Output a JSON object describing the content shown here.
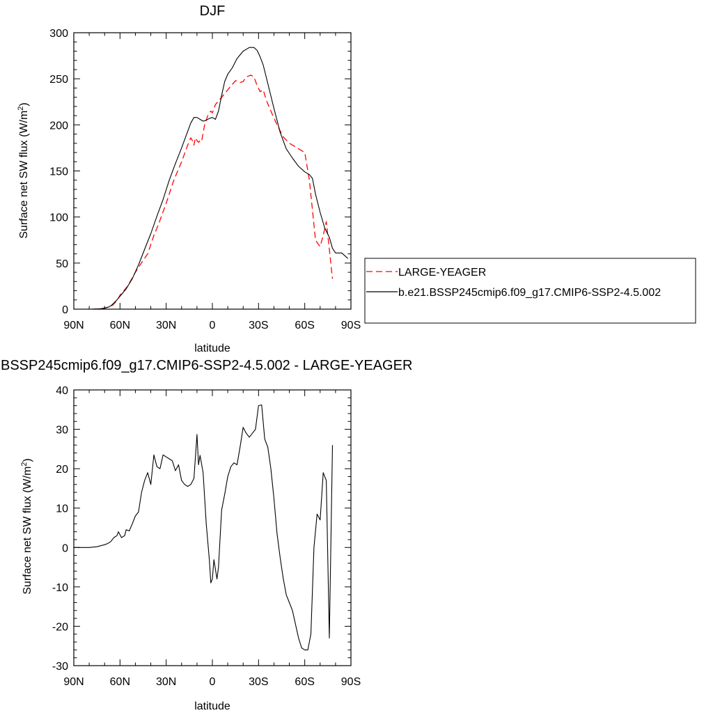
{
  "chart_data": [
    {
      "type": "line",
      "title": "DJF",
      "xlabel": "latitude",
      "ylabel": "Surface net SW flux (W/m",
      "ylabel_sup": "2",
      "ylabel_close": ")",
      "xlim": [
        90,
        -90
      ],
      "ylim": [
        0,
        300
      ],
      "xticks": [
        90,
        60,
        30,
        0,
        -30,
        -60,
        -90
      ],
      "xtick_labels": [
        "90N",
        "60N",
        "30N",
        "0",
        "30S",
        "60S",
        "90S"
      ],
      "yticks": [
        0,
        50,
        100,
        150,
        200,
        250,
        300
      ],
      "ytick_labels": [
        "0",
        "50",
        "100",
        "150",
        "200",
        "250",
        "300"
      ],
      "grid": false,
      "legend_position": "right",
      "series": [
        {
          "name": "LARGE-YEAGER",
          "color": "#ff0000",
          "dash": "dashed",
          "x": [
            78,
            72,
            68,
            65,
            62,
            60,
            55,
            50,
            45,
            42,
            38,
            35,
            30,
            25,
            20,
            16,
            14,
            13,
            12,
            11,
            10,
            9,
            8,
            7,
            5,
            3,
            1,
            0,
            -2,
            -5,
            -10,
            -15,
            -18,
            -20,
            -22,
            -25,
            -27,
            -29,
            -31,
            -33,
            -35,
            -38,
            -42,
            -46,
            -50,
            -55,
            -60,
            -63,
            -65,
            -67,
            -69,
            -70,
            -72,
            -74,
            -76,
            -78
          ],
          "y": [
            0,
            0.5,
            2,
            4,
            9,
            15,
            25,
            40,
            53,
            60,
            80,
            92,
            115,
            140,
            160,
            178,
            186,
            183,
            178,
            186,
            183,
            181,
            183,
            182,
            200,
            210,
            215,
            213,
            222,
            228,
            238,
            248,
            246,
            247,
            252,
            254,
            252,
            243,
            236,
            238,
            227,
            215,
            200,
            187,
            180,
            175,
            170,
            140,
            108,
            75,
            70,
            68,
            80,
            95,
            65,
            33
          ]
        },
        {
          "name": "b.e21.BSSP245cmip6.f09_g17.CMIP6-SSP2-4.5.002",
          "color": "#000000",
          "dash": "solid",
          "x": [
            78,
            74,
            70,
            67,
            65,
            62,
            60,
            56,
            52,
            48,
            44,
            40,
            36,
            32,
            28,
            24,
            20,
            16,
            14,
            12,
            10,
            8,
            6,
            4,
            2,
            0,
            -2,
            -4,
            -6,
            -8,
            -10,
            -13,
            -16,
            -20,
            -24,
            -27,
            -29,
            -31,
            -33,
            -36,
            -40,
            -44,
            -48,
            -52,
            -56,
            -60,
            -63,
            -65,
            -67,
            -70,
            -73,
            -76,
            -78,
            -80,
            -82,
            -84,
            -86,
            -88
          ],
          "y": [
            0,
            0.2,
            1,
            2.5,
            5,
            10,
            14,
            22,
            33,
            48,
            65,
            82,
            101,
            119,
            140,
            158,
            175,
            193,
            202,
            208,
            208,
            206,
            204,
            205,
            207,
            208,
            206,
            215,
            232,
            247,
            255,
            262,
            272,
            280,
            284,
            284,
            281,
            274,
            265,
            245,
            218,
            192,
            174,
            164,
            155,
            149,
            146,
            142,
            125,
            105,
            88,
            78,
            66,
            61,
            61,
            61,
            58,
            55
          ]
        }
      ]
    },
    {
      "type": "line",
      "title": "BSSP245cmip6.f09_g17.CMIP6-SSP2-4.5.002 - LARGE-YEAGER",
      "xlabel": "latitude",
      "ylabel": "Surface net SW flux (W/m",
      "ylabel_sup": "2",
      "ylabel_close": ")",
      "xlim": [
        90,
        -90
      ],
      "ylim": [
        -30,
        40
      ],
      "xticks": [
        90,
        60,
        30,
        0,
        -30,
        -60,
        -90
      ],
      "xtick_labels": [
        "90N",
        "60N",
        "30N",
        "0",
        "30S",
        "60S",
        "90S"
      ],
      "yticks": [
        -30,
        -20,
        -10,
        0,
        10,
        20,
        30,
        40
      ],
      "ytick_labels": [
        "-30",
        "-20",
        "-10",
        "0",
        "10",
        "20",
        "30",
        "40"
      ],
      "grid": false,
      "series": [
        {
          "color": "#000000",
          "dash": "solid",
          "x": [
            90,
            80,
            75,
            70,
            68,
            66,
            64,
            62,
            61,
            59,
            57,
            56,
            54,
            52,
            50,
            48,
            46,
            44,
            42,
            40,
            38,
            36,
            34,
            32,
            30,
            28,
            26,
            24,
            22,
            20,
            18,
            16,
            14,
            12,
            11,
            10,
            9,
            8,
            6,
            4,
            2,
            1,
            0,
            -1,
            -3,
            -4,
            -6,
            -8,
            -10,
            -12,
            -14,
            -16,
            -18,
            -20,
            -22,
            -24,
            -26,
            -28,
            -30,
            -32,
            -34,
            -36,
            -38,
            -40,
            -42,
            -44,
            -46,
            -48,
            -50,
            -52,
            -54,
            -56,
            -58,
            -60,
            -62,
            -64,
            -66,
            -68,
            -70,
            -72,
            -74,
            -76,
            -78
          ],
          "y": [
            0,
            0,
            0.2,
            0.7,
            1,
            1.5,
            2.5,
            3,
            4,
            2.5,
            3,
            4.5,
            4.2,
            6,
            8,
            9,
            14,
            17,
            19,
            16,
            23.5,
            20.5,
            20,
            23.5,
            23,
            22.5,
            22,
            19.5,
            21,
            17,
            16,
            15.5,
            16,
            17.5,
            23,
            28.7,
            21,
            23.4,
            19,
            6,
            -3,
            -9,
            -8,
            -3.1,
            -8,
            -5,
            9.5,
            13.5,
            18,
            20.5,
            21.5,
            21,
            25.5,
            30.5,
            29,
            28,
            29,
            30,
            36,
            36.2,
            27.5,
            25.5,
            20,
            12.5,
            3.5,
            -2.5,
            -7.8,
            -12,
            -14,
            -16,
            -19.5,
            -23,
            -25.5,
            -26,
            -26,
            -22,
            0,
            8.5,
            7,
            19,
            17,
            -23,
            26
          ]
        }
      ]
    }
  ]
}
